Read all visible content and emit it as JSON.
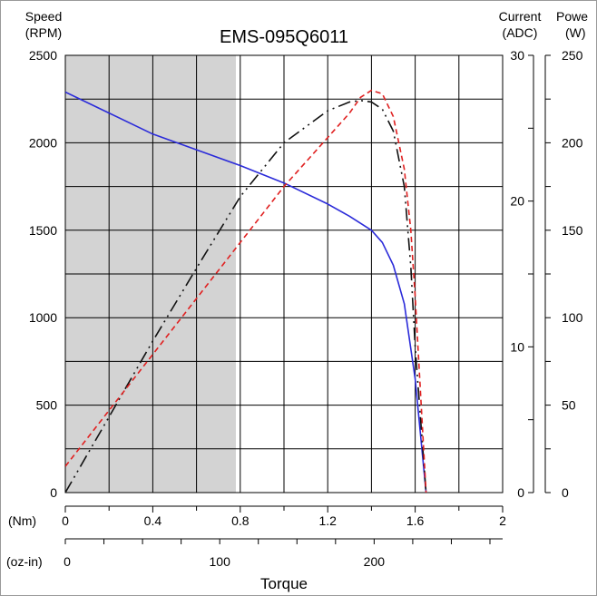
{
  "chart_data": {
    "type": "line",
    "title": "EMS-095Q6011",
    "xlabel": "Torque",
    "x_units": [
      "(Nm)",
      "(oz-in)"
    ],
    "x_ticks_nm": [
      "0",
      "0.4",
      "0.8",
      "1.2",
      "1.6",
      "2"
    ],
    "x_ticks_ozin": [
      "0",
      "100",
      "200"
    ],
    "xlim_nm": [
      0,
      2
    ],
    "axes": {
      "speed": {
        "label": [
          "Speed",
          "(RPM)"
        ],
        "ylim": [
          0,
          2500
        ],
        "ticks": [
          "0",
          "500",
          "1000",
          "1500",
          "2000",
          "2500"
        ]
      },
      "current": {
        "label": [
          "Current",
          "(ADC)"
        ],
        "ylim": [
          0,
          30
        ],
        "ticks": [
          "0",
          "10",
          "20",
          "30"
        ]
      },
      "power": {
        "label": [
          "Powe",
          "(W)"
        ],
        "ylim": [
          0,
          250
        ],
        "ticks": [
          "0",
          "50",
          "100",
          "150",
          "200",
          "250"
        ]
      }
    },
    "shaded_region": {
      "x_from_nm": 0,
      "x_to_nm": 0.78,
      "color": "#d3d3d3"
    },
    "series": [
      {
        "axis": "speed",
        "color": "#2b2bd9",
        "style": "solid",
        "x": [
          0,
          0.2,
          0.4,
          0.6,
          0.8,
          1.0,
          1.2,
          1.3,
          1.4,
          1.45,
          1.5,
          1.55,
          1.6,
          1.65
        ],
        "values": [
          2290,
          2170,
          2050,
          1960,
          1870,
          1770,
          1650,
          1580,
          1500,
          1430,
          1300,
          1080,
          650,
          0
        ]
      },
      {
        "axis": "current",
        "color": "#111111",
        "style": "dashdot",
        "x": [
          0,
          0.2,
          0.4,
          0.6,
          0.8,
          1.0,
          1.2,
          1.3,
          1.35,
          1.4,
          1.45,
          1.5,
          1.55,
          1.58,
          1.6,
          1.65
        ],
        "values": [
          0,
          5.2,
          10.4,
          15.4,
          20.3,
          24.0,
          26.2,
          26.8,
          26.9,
          26.8,
          26.3,
          24.8,
          21.0,
          15.5,
          10.0,
          0
        ]
      },
      {
        "axis": "power",
        "color": "#e02020",
        "style": "dashed",
        "x": [
          0,
          0.2,
          0.4,
          0.6,
          0.8,
          1.0,
          1.2,
          1.3,
          1.35,
          1.4,
          1.45,
          1.5,
          1.55,
          1.58,
          1.6,
          1.65
        ],
        "values": [
          15,
          47,
          79,
          111,
          143,
          175,
          203,
          217,
          226,
          230,
          228,
          215,
          185,
          150,
          112,
          0
        ]
      }
    ],
    "grid": true
  }
}
